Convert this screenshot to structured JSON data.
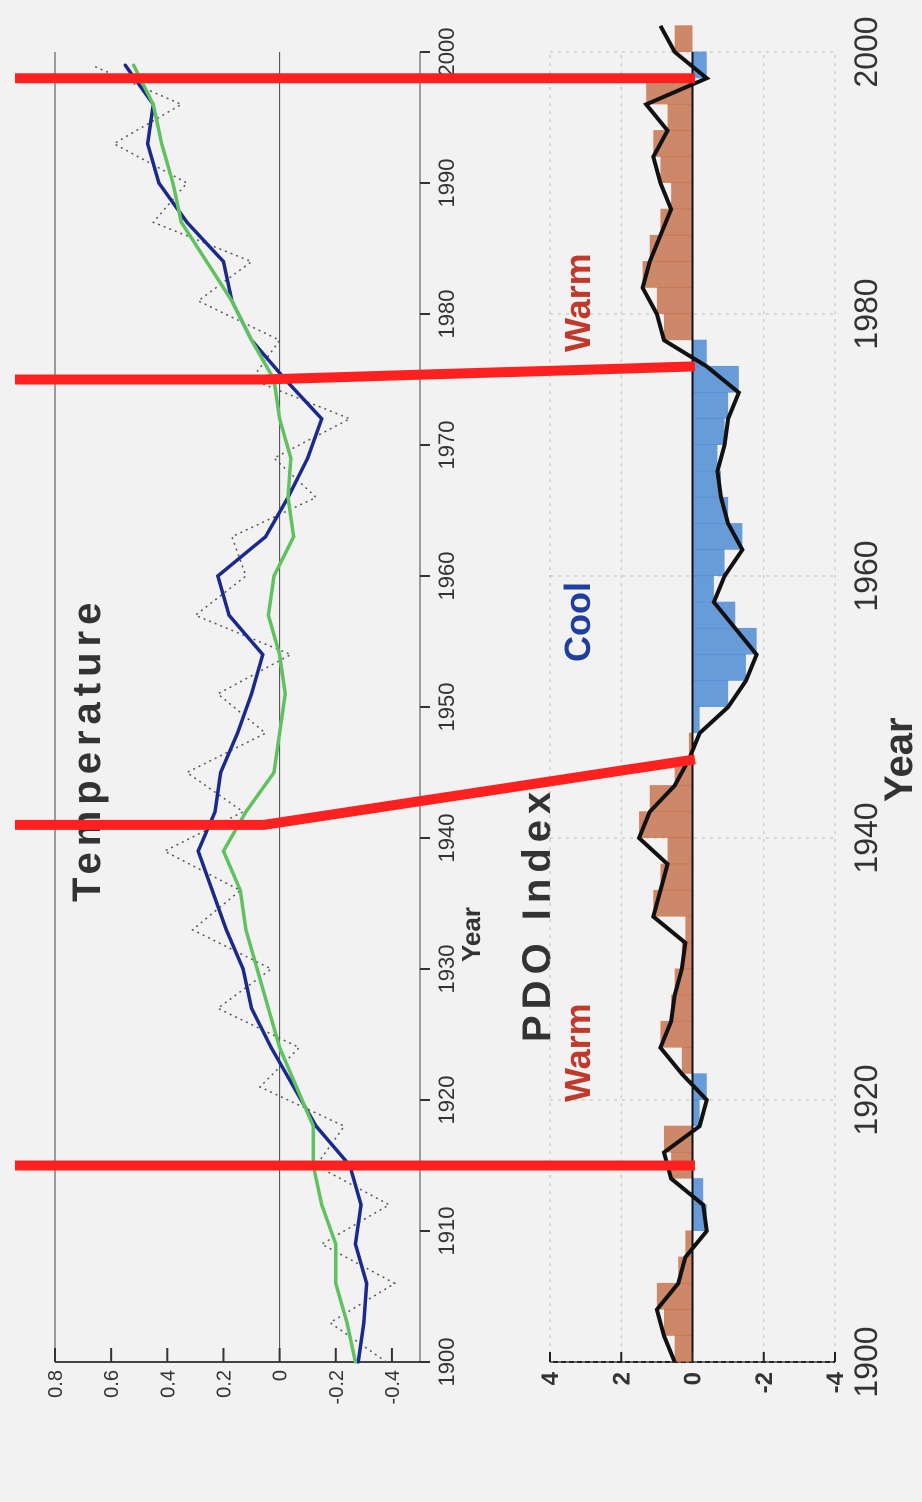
{
  "chart_data": [
    {
      "type": "line",
      "title": "Temperature",
      "xlabel": "Year",
      "ylabel": "",
      "xlim": [
        1900,
        2000
      ],
      "ylim": [
        -0.5,
        0.8
      ],
      "x_ticks": [
        "1900",
        "1910",
        "1920",
        "1930",
        "1940",
        "1950",
        "1960",
        "1970",
        "1980",
        "1990",
        "2000"
      ],
      "y_ticks": [
        "0.8",
        "0.6",
        "0.4",
        "0.2",
        "0",
        "-0.2",
        "-0.4"
      ],
      "y_tick_values": [
        0.8,
        0.6,
        0.4,
        0.2,
        0,
        -0.2,
        -0.4
      ],
      "series": [
        {
          "color": "#1a2a8c",
          "x": [
            1900,
            1903,
            1906,
            1909,
            1912,
            1915,
            1918,
            1921,
            1924,
            1927,
            1930,
            1933,
            1936,
            1939,
            1942,
            1945,
            1948,
            1951,
            1954,
            1957,
            1960,
            1963,
            1966,
            1969,
            1972,
            1975,
            1978,
            1981,
            1984,
            1987,
            1990,
            1993,
            1996,
            1999
          ],
          "y": [
            -0.28,
            -0.3,
            -0.31,
            -0.27,
            -0.29,
            -0.25,
            -0.13,
            -0.05,
            0.03,
            0.1,
            0.13,
            0.19,
            0.24,
            0.29,
            0.23,
            0.21,
            0.15,
            0.1,
            0.06,
            0.18,
            0.22,
            0.05,
            -0.03,
            -0.1,
            -0.15,
            -0.02,
            0.1,
            0.17,
            0.2,
            0.33,
            0.43,
            0.47,
            0.45,
            0.55
          ]
        },
        {
          "color": "#5fc25f",
          "x": [
            1900,
            1903,
            1906,
            1909,
            1912,
            1915,
            1918,
            1921,
            1924,
            1927,
            1930,
            1933,
            1936,
            1939,
            1942,
            1945,
            1948,
            1951,
            1954,
            1957,
            1960,
            1963,
            1966,
            1969,
            1972,
            1975,
            1978,
            1981,
            1984,
            1987,
            1990,
            1993,
            1996,
            1999
          ],
          "y": [
            -0.27,
            -0.24,
            -0.2,
            -0.2,
            -0.15,
            -0.12,
            -0.12,
            -0.06,
            0,
            0.04,
            0.08,
            0.12,
            0.14,
            0.2,
            0.12,
            0.02,
            0.0,
            -0.02,
            0.0,
            0.04,
            0.02,
            -0.05,
            -0.03,
            -0.04,
            0.0,
            0.02,
            0.1,
            0.17,
            0.26,
            0.35,
            0.38,
            0.42,
            0.45,
            0.52
          ]
        }
      ]
    },
    {
      "type": "area",
      "title": "PDO Index",
      "xlabel": "Year",
      "ylabel": "",
      "xlim": [
        1900,
        2000
      ],
      "ylim": [
        -4,
        4
      ],
      "x_ticks": [
        "1900",
        "1920",
        "1940",
        "1960",
        "1980",
        "2000"
      ],
      "y_ticks": [
        "4",
        "2",
        "0",
        "-2",
        "-4"
      ],
      "y_tick_values": [
        4,
        2,
        0,
        -2,
        -4
      ],
      "annotations": [
        "Warm",
        "Cool",
        "Warm"
      ],
      "series": [
        {
          "x": [
            1900,
            1902,
            1904,
            1906,
            1908,
            1910,
            1912,
            1914,
            1916,
            1918,
            1920,
            1922,
            1924,
            1926,
            1928,
            1930,
            1932,
            1934,
            1936,
            1938,
            1940,
            1942,
            1944,
            1946,
            1948,
            1950,
            1952,
            1954,
            1956,
            1958,
            1960,
            1962,
            1964,
            1966,
            1968,
            1970,
            1972,
            1974,
            1976,
            1978,
            1980,
            1982,
            1984,
            1986,
            1988,
            1990,
            1992,
            1994,
            1996,
            1998,
            2000,
            2002
          ],
          "y": [
            0.5,
            0.8,
            1.0,
            0.4,
            0.2,
            -0.4,
            -0.3,
            0.6,
            0.8,
            -0.2,
            -0.4,
            0.3,
            0.9,
            0.6,
            0.5,
            0.3,
            0.2,
            1.1,
            0.9,
            0.7,
            1.5,
            1.2,
            0.5,
            0.1,
            -0.2,
            -1.0,
            -1.5,
            -1.8,
            -1.2,
            -0.6,
            -0.9,
            -1.4,
            -1.0,
            -0.8,
            -0.7,
            -0.9,
            -1.0,
            -1.3,
            -0.4,
            0.8,
            1.0,
            1.4,
            1.2,
            0.9,
            0.6,
            0.9,
            1.1,
            0.7,
            1.3,
            -0.4,
            0.5,
            0.9
          ]
        }
      ]
    }
  ],
  "overlay": {
    "color": "#ff2020",
    "lines": [
      {
        "temp_year": 1915,
        "pdo_year": 1915
      },
      {
        "temp_year": 1941,
        "pdo_year": 1946
      },
      {
        "temp_year": 1975,
        "pdo_year": 1976
      },
      {
        "temp_year": 1998,
        "pdo_year": 1998
      }
    ]
  }
}
